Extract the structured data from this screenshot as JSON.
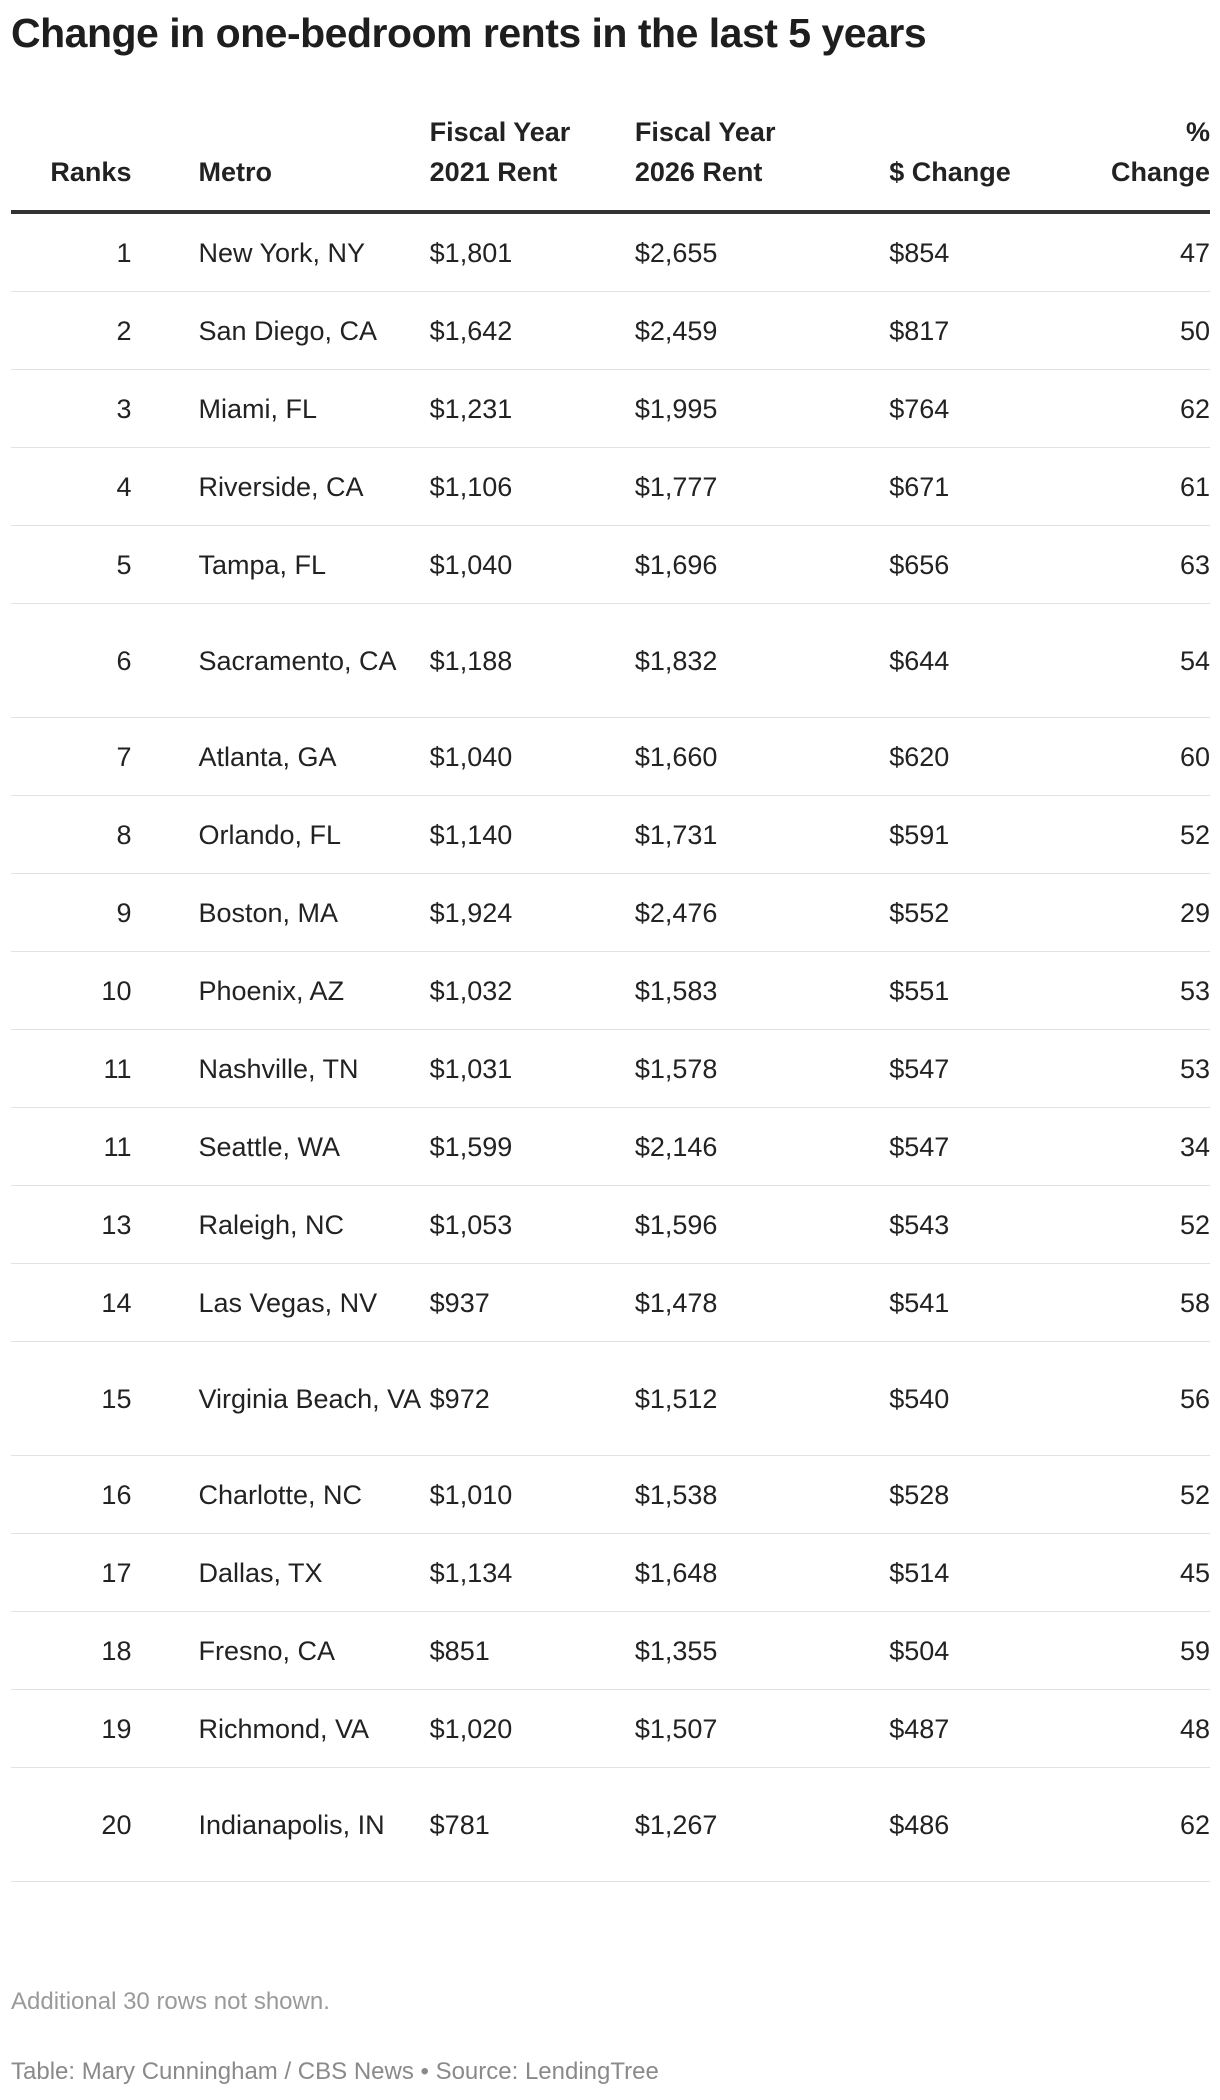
{
  "title": "Change in one-bedroom rents in the last 5 years",
  "columns": [
    "Ranks",
    "Metro",
    "Fiscal Year 2021 Rent",
    "Fiscal Year 2026 Rent",
    "$ Change",
    "% Change"
  ],
  "rows": [
    {
      "rank": "1",
      "metro": "New York, NY",
      "fy2021": "$1,801",
      "fy2026": "$2,655",
      "dollar_change": "$854",
      "pct_change": "47"
    },
    {
      "rank": "2",
      "metro": "San Diego, CA",
      "fy2021": "$1,642",
      "fy2026": "$2,459",
      "dollar_change": "$817",
      "pct_change": "50"
    },
    {
      "rank": "3",
      "metro": "Miami, FL",
      "fy2021": "$1,231",
      "fy2026": "$1,995",
      "dollar_change": "$764",
      "pct_change": "62"
    },
    {
      "rank": "4",
      "metro": "Riverside, CA",
      "fy2021": "$1,106",
      "fy2026": "$1,777",
      "dollar_change": "$671",
      "pct_change": "61"
    },
    {
      "rank": "5",
      "metro": "Tampa, FL",
      "fy2021": "$1,040",
      "fy2026": "$1,696",
      "dollar_change": "$656",
      "pct_change": "63"
    },
    {
      "rank": "6",
      "metro": "Sacramento, CA",
      "fy2021": "$1,188",
      "fy2026": "$1,832",
      "dollar_change": "$644",
      "pct_change": "54"
    },
    {
      "rank": "7",
      "metro": "Atlanta, GA",
      "fy2021": "$1,040",
      "fy2026": "$1,660",
      "dollar_change": "$620",
      "pct_change": "60"
    },
    {
      "rank": "8",
      "metro": "Orlando, FL",
      "fy2021": "$1,140",
      "fy2026": "$1,731",
      "dollar_change": "$591",
      "pct_change": "52"
    },
    {
      "rank": "9",
      "metro": "Boston, MA",
      "fy2021": "$1,924",
      "fy2026": "$2,476",
      "dollar_change": "$552",
      "pct_change": "29"
    },
    {
      "rank": "10",
      "metro": "Phoenix, AZ",
      "fy2021": "$1,032",
      "fy2026": "$1,583",
      "dollar_change": "$551",
      "pct_change": "53"
    },
    {
      "rank": "11",
      "metro": "Nashville, TN",
      "fy2021": "$1,031",
      "fy2026": "$1,578",
      "dollar_change": "$547",
      "pct_change": "53"
    },
    {
      "rank": "11",
      "metro": "Seattle, WA",
      "fy2021": "$1,599",
      "fy2026": "$2,146",
      "dollar_change": "$547",
      "pct_change": "34"
    },
    {
      "rank": "13",
      "metro": "Raleigh, NC",
      "fy2021": "$1,053",
      "fy2026": "$1,596",
      "dollar_change": "$543",
      "pct_change": "52"
    },
    {
      "rank": "14",
      "metro": "Las Vegas, NV",
      "fy2021": "$937",
      "fy2026": "$1,478",
      "dollar_change": "$541",
      "pct_change": "58"
    },
    {
      "rank": "15",
      "metro": "Virginia Beach, VA",
      "fy2021": "$972",
      "fy2026": "$1,512",
      "dollar_change": "$540",
      "pct_change": "56"
    },
    {
      "rank": "16",
      "metro": "Charlotte, NC",
      "fy2021": "$1,010",
      "fy2026": "$1,538",
      "dollar_change": "$528",
      "pct_change": "52"
    },
    {
      "rank": "17",
      "metro": "Dallas, TX",
      "fy2021": "$1,134",
      "fy2026": "$1,648",
      "dollar_change": "$514",
      "pct_change": "45"
    },
    {
      "rank": "18",
      "metro": "Fresno, CA",
      "fy2021": "$851",
      "fy2026": "$1,355",
      "dollar_change": "$504",
      "pct_change": "59"
    },
    {
      "rank": "19",
      "metro": "Richmond, VA",
      "fy2021": "$1,020",
      "fy2026": "$1,507",
      "dollar_change": "$487",
      "pct_change": "48"
    },
    {
      "rank": "20",
      "metro": "Indianapolis, IN",
      "fy2021": "$781",
      "fy2026": "$1,267",
      "dollar_change": "$486",
      "pct_change": "62"
    }
  ],
  "note": "Additional 30 rows not shown.",
  "credit": "Table: Mary Cunningham / CBS News • Source: LendingTree"
}
